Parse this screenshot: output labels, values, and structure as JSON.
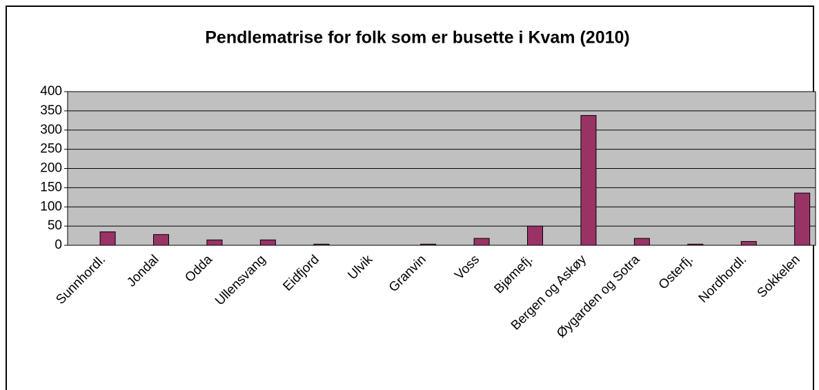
{
  "chart_data": {
    "type": "bar",
    "title": "Pendlematrise for folk som er busette i Kvam (2010)",
    "categories": [
      "Sunnhordl.",
      "Jondal",
      "Odda",
      "Ullensvang",
      "Eidfjord",
      "Ulvik",
      "Granvin",
      "Voss",
      "Bjømefj.",
      "Bergen og Askøy",
      "Øygarden og Sotra",
      "Osterfj.",
      "Nordhordl.",
      "Sokkelen"
    ],
    "values": [
      35,
      28,
      14,
      14,
      3,
      0,
      3,
      18,
      50,
      338,
      18,
      3,
      10,
      136
    ],
    "color": "#993366",
    "ylim": [
      0,
      400
    ],
    "yticks": [
      0,
      50,
      100,
      150,
      200,
      250,
      300,
      350,
      400
    ],
    "grid": true
  }
}
